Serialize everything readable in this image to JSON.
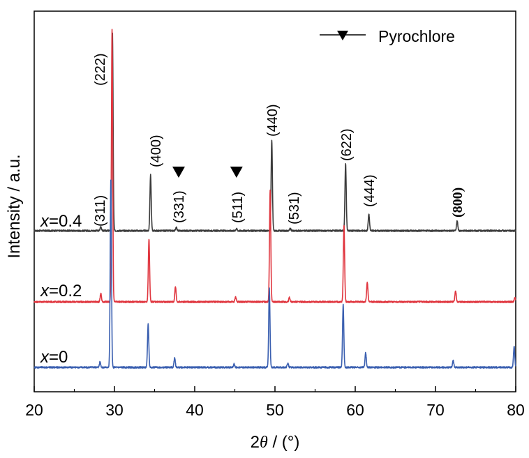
{
  "chart_data": {
    "type": "line",
    "xlabel_prefix": "2",
    "xlabel_symbol": "θ",
    "xlabel_suffix": " / (°)",
    "ylabel": "Intensity / a.u.",
    "xlim": [
      20,
      80
    ],
    "xticks": [
      "20",
      "30",
      "40",
      "50",
      "60",
      "70",
      "80"
    ],
    "legend": {
      "label": "Pyrochlore",
      "position": "top-right"
    },
    "series": [
      {
        "name": "x=0.4",
        "name_var": "x",
        "name_val": "=0.4",
        "color": "#3c3c3c",
        "peaks": [
          [
            28.3,
            6
          ],
          [
            29.75,
            285
          ],
          [
            34.5,
            80
          ],
          [
            37.7,
            5
          ],
          [
            45.2,
            3
          ],
          [
            49.6,
            130
          ],
          [
            51.9,
            3
          ],
          [
            58.8,
            96
          ],
          [
            61.7,
            24
          ],
          [
            72.7,
            14
          ]
        ]
      },
      {
        "name": "x=0.2",
        "name_var": "x",
        "name_val": "=0.2",
        "color": "#e0363f",
        "peaks": [
          [
            28.3,
            12
          ],
          [
            29.7,
            390
          ],
          [
            34.3,
            90
          ],
          [
            37.6,
            22
          ],
          [
            45.1,
            7
          ],
          [
            49.4,
            160
          ],
          [
            51.8,
            6
          ],
          [
            58.6,
            110
          ],
          [
            61.5,
            28
          ],
          [
            72.5,
            16
          ],
          [
            79.9,
            6
          ]
        ]
      },
      {
        "name": "x=0",
        "name_var": "x",
        "name_val": "=0",
        "color": "#3a5fb0",
        "peaks": [
          [
            28.2,
            8
          ],
          [
            29.55,
            270
          ],
          [
            34.2,
            62
          ],
          [
            37.5,
            14
          ],
          [
            44.9,
            5
          ],
          [
            49.3,
            113
          ],
          [
            51.6,
            6
          ],
          [
            58.5,
            90
          ],
          [
            61.3,
            21
          ],
          [
            72.2,
            10
          ],
          [
            79.8,
            30
          ]
        ]
      }
    ],
    "peak_labels": [
      "(311)",
      "(222)",
      "(400)",
      "(331)",
      "(511)",
      "(440)",
      "(531)",
      "(622)",
      "(444)",
      "(800)"
    ],
    "pyrochlore_markers": [
      38,
      45.2
    ]
  }
}
